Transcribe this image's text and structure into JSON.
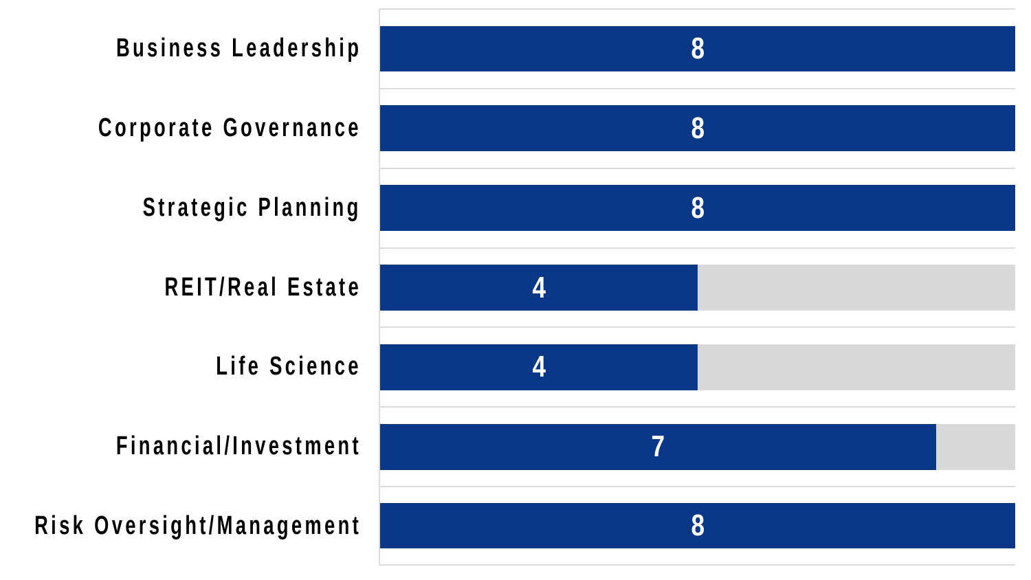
{
  "chart_data": {
    "type": "bar",
    "orientation": "horizontal",
    "title": "",
    "xlabel": "",
    "ylabel": "",
    "legend": false,
    "grid": "horizontal category separators",
    "data_labels": "value centered inside filled segment",
    "xlim": [
      0,
      8
    ],
    "max_value": 8,
    "categories": [
      "Business Leadership",
      "Corporate Governance",
      "Strategic Planning",
      "REIT/Real Estate",
      "Life Science",
      "Financial/Investment",
      "Risk Oversight/Management"
    ],
    "values": [
      8,
      8,
      8,
      4,
      4,
      7,
      8
    ],
    "value_labels": [
      "8",
      "8",
      "8",
      "4",
      "4",
      "7",
      "8"
    ],
    "colors": {
      "bar": "#0a3786",
      "remainder": "#d9d9d9",
      "gridline": "#dcdcdc",
      "label_text": "#000000",
      "value_text": "#ffffff"
    }
  }
}
